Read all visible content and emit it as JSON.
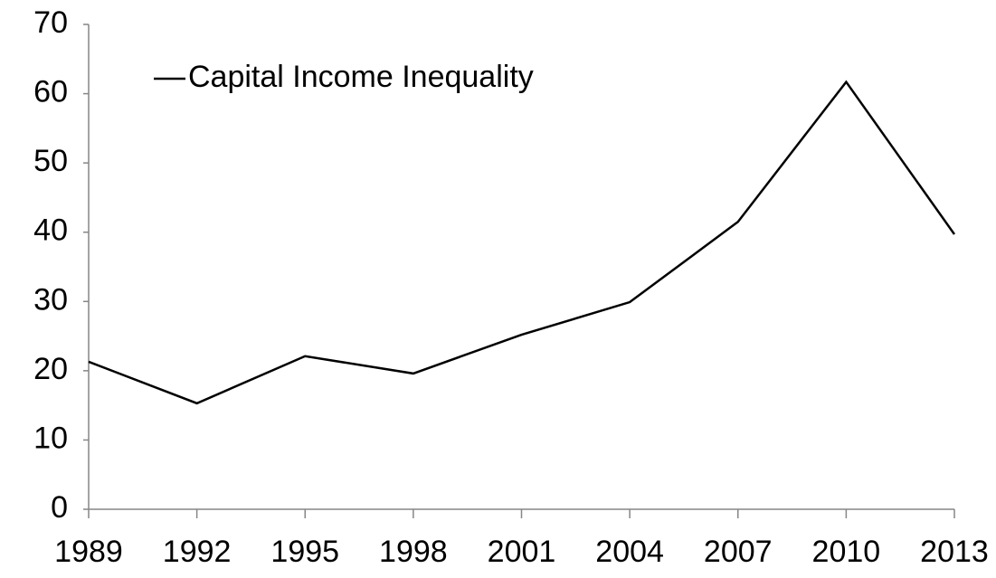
{
  "chart_data": {
    "type": "line",
    "categories": [
      "1989",
      "1992",
      "1995",
      "1998",
      "2001",
      "2004",
      "2007",
      "2010",
      "2013"
    ],
    "series": [
      {
        "name": "Capital Income Inequality",
        "color": "#000000",
        "values": [
          21.3,
          15.3,
          22.1,
          19.6,
          25.2,
          29.9,
          41.5,
          61.7,
          39.7
        ]
      }
    ],
    "ylim": [
      0,
      70
    ],
    "yticks": [
      0,
      10,
      20,
      30,
      40,
      50,
      60,
      70
    ],
    "grid": false,
    "legend": "upper left"
  }
}
